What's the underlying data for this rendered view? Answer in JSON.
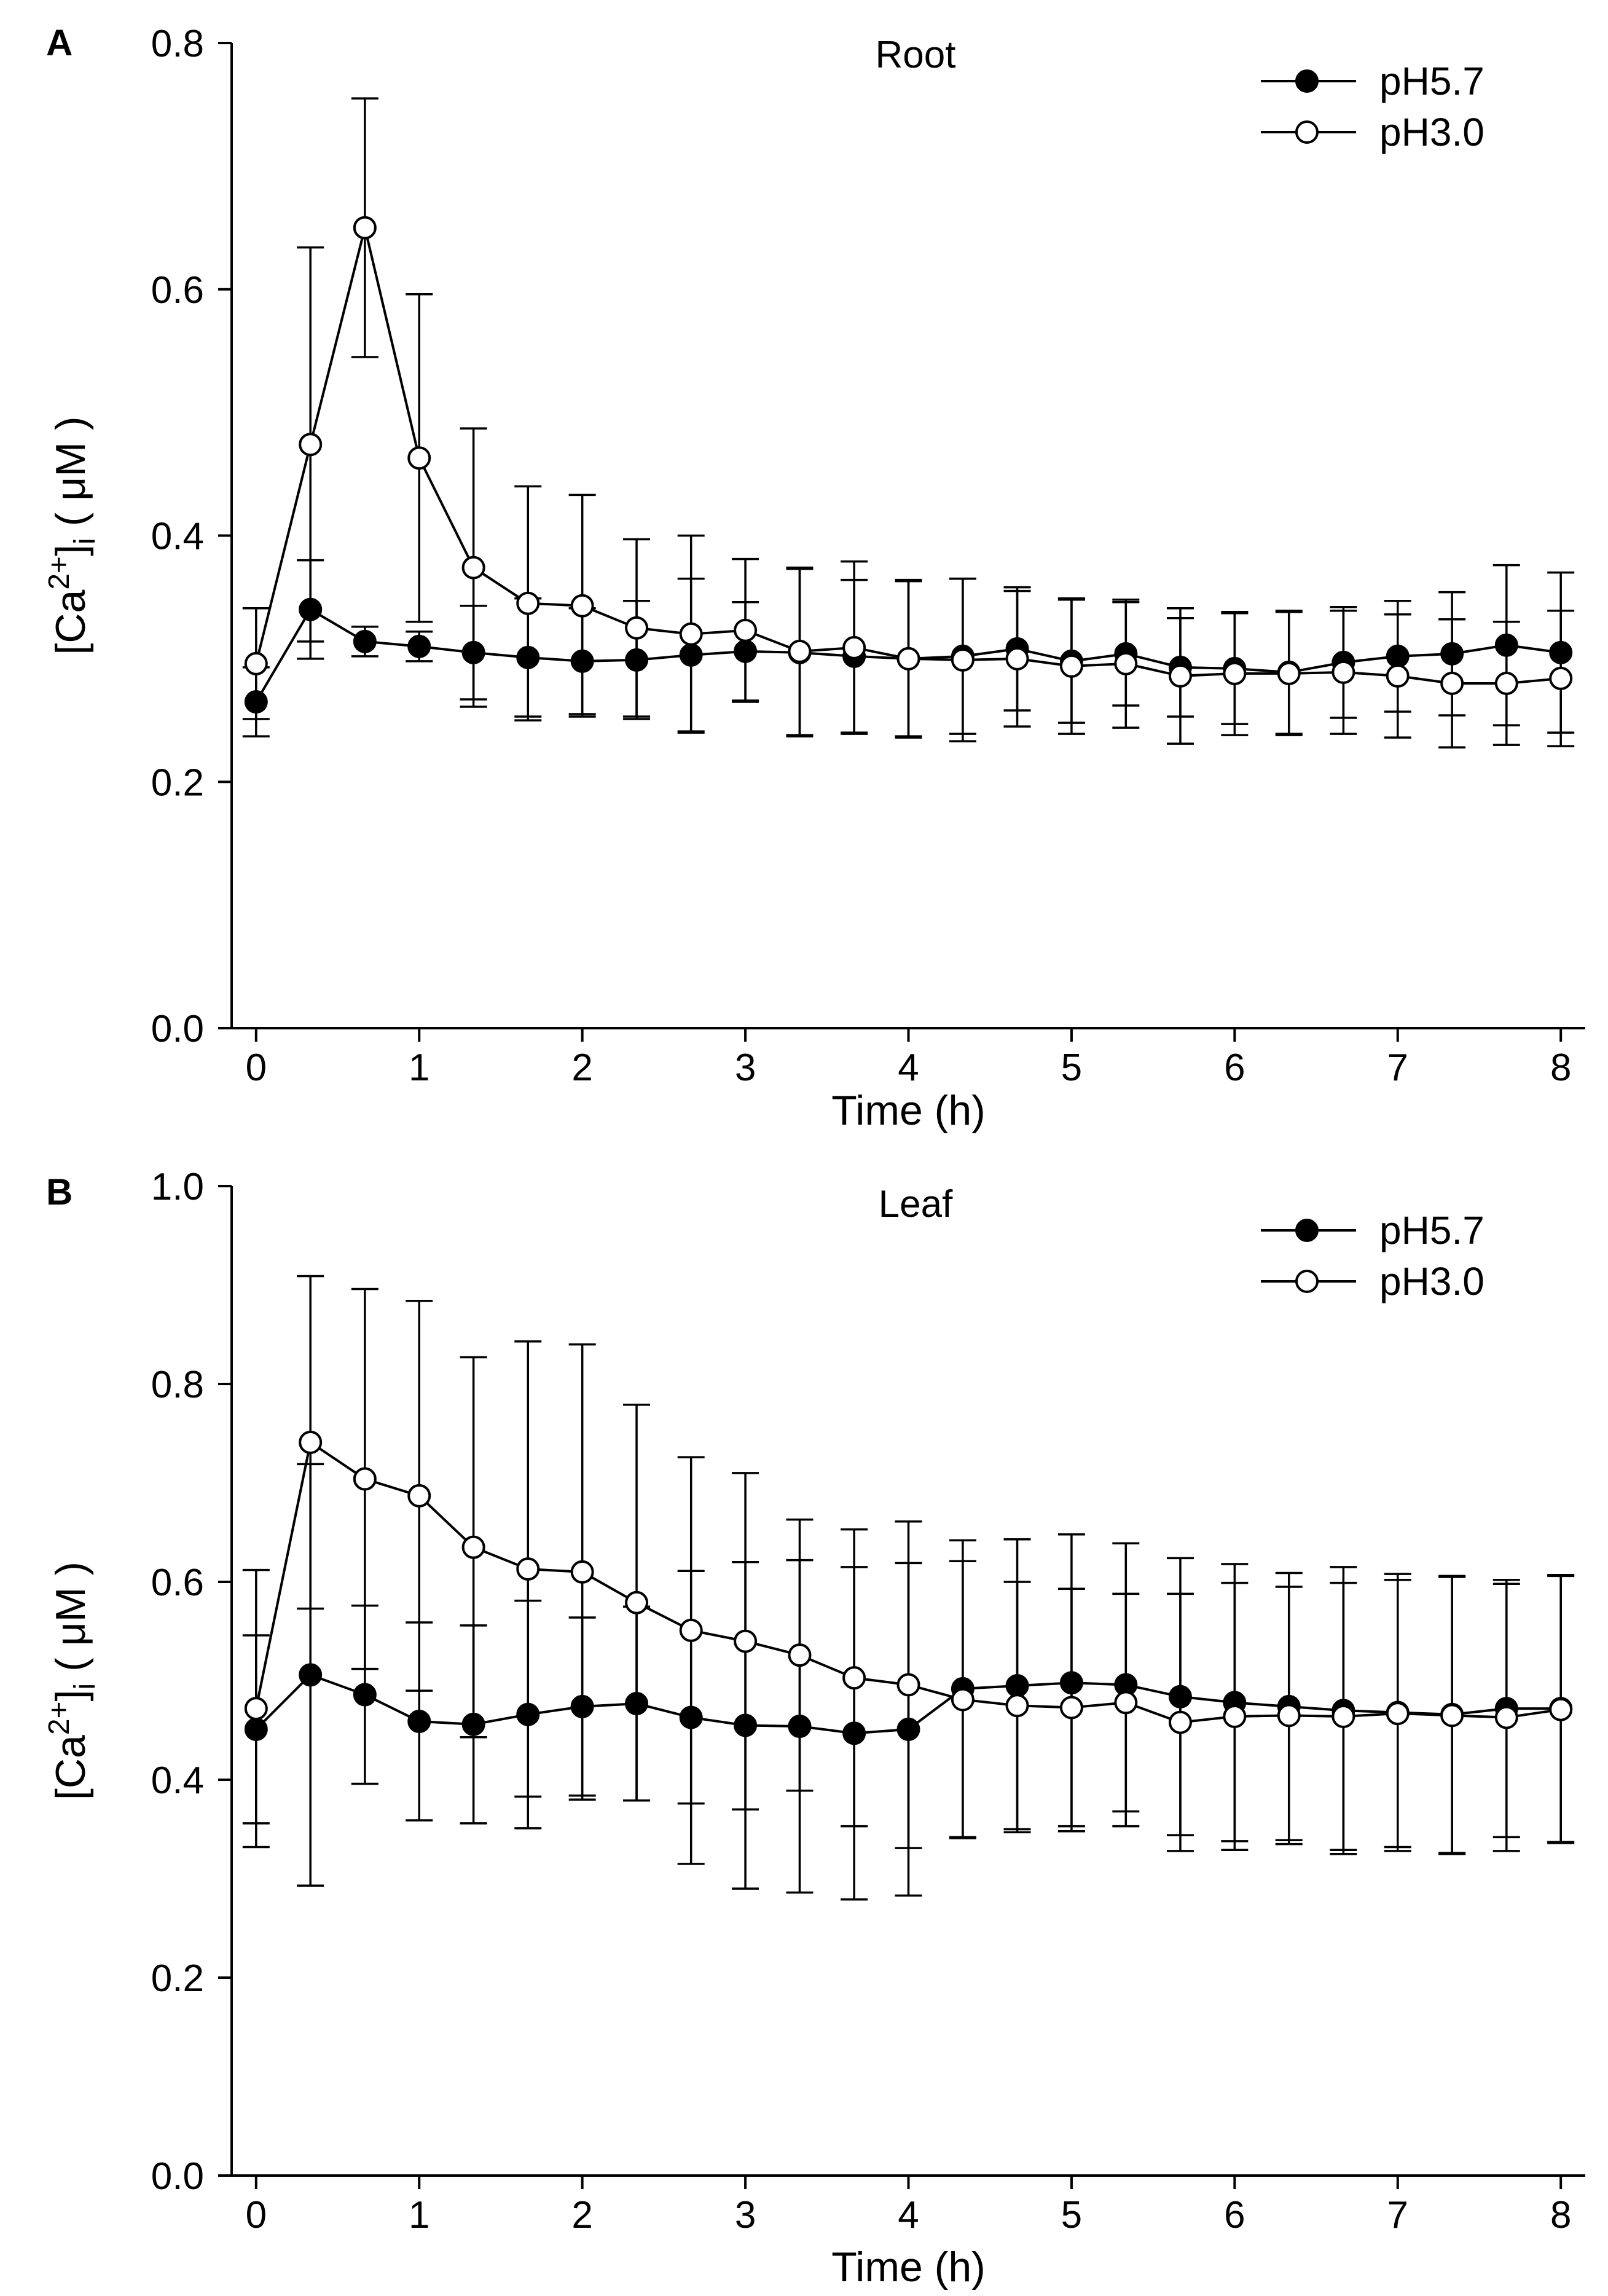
{
  "chart_data": [
    {
      "type": "line",
      "panel_label": "A",
      "title": "Root",
      "xlabel": "Time (h)",
      "ylabel": "[Ca2+]i ( μM )",
      "ylabel_parts": {
        "base": "[Ca",
        "sup": "2+",
        "mid": "]",
        "sub": "i",
        "tail": " ( μM )"
      },
      "xlim": [
        -0.15,
        8.15
      ],
      "ylim": [
        0,
        0.8
      ],
      "xticks": [
        0,
        1,
        2,
        3,
        4,
        5,
        6,
        7,
        8
      ],
      "yticks": [
        0.0,
        0.2,
        0.4,
        0.6,
        0.8
      ],
      "ytick_labels": [
        "0.0",
        "0.2",
        "0.4",
        "0.6",
        "0.8"
      ],
      "xtick_labels": [
        "0",
        "1",
        "2",
        "3",
        "4",
        "5",
        "6",
        "7",
        "8"
      ],
      "legend": [
        "pH5.7",
        "pH3.0"
      ],
      "legend_position": "top-right",
      "x": [
        0,
        0.333,
        0.667,
        1,
        1.333,
        1.667,
        2,
        2.333,
        2.667,
        3,
        3.333,
        3.667,
        4,
        4.333,
        4.667,
        5,
        5.333,
        5.667,
        6,
        6.333,
        6.667,
        7,
        7.333,
        7.667,
        8
      ],
      "series": [
        {
          "name": "pH5.7",
          "marker": "filled",
          "values": [
            0.265,
            0.34,
            0.314,
            0.31,
            0.305,
            0.301,
            0.298,
            0.299,
            0.303,
            0.306,
            0.305,
            0.302,
            0.3,
            0.302,
            0.308,
            0.298,
            0.304,
            0.293,
            0.292,
            0.289,
            0.297,
            0.302,
            0.304,
            0.311,
            0.305
          ],
          "errors": [
            0.028,
            0.04,
            0.012,
            0.012,
            0.038,
            0.048,
            0.043,
            0.048,
            0.062,
            0.04,
            0.068,
            0.062,
            0.064,
            0.063,
            0.05,
            0.05,
            0.042,
            0.04,
            0.045,
            0.05,
            0.045,
            0.045,
            0.05,
            0.065,
            0.065
          ]
        },
        {
          "name": "pH3.0",
          "marker": "open",
          "values": [
            0.296,
            0.474,
            0.65,
            0.463,
            0.374,
            0.345,
            0.343,
            0.325,
            0.32,
            0.323,
            0.306,
            0.309,
            0.3,
            0.299,
            0.3,
            0.294,
            0.296,
            0.286,
            0.288,
            0.288,
            0.289,
            0.286,
            0.28,
            0.28,
            0.284
          ],
          "errors": [
            0.045,
            0.16,
            0.105,
            0.133,
            0.113,
            0.095,
            0.09,
            0.072,
            0.08,
            0.058,
            0.068,
            0.07,
            0.063,
            0.066,
            0.055,
            0.055,
            0.052,
            0.055,
            0.05,
            0.05,
            0.05,
            0.05,
            0.052,
            0.05,
            0.055
          ]
        }
      ]
    },
    {
      "type": "line",
      "panel_label": "B",
      "title": "Leaf",
      "xlabel": "Time (h)",
      "ylabel": "[Ca2+]i ( μM )",
      "ylabel_parts": {
        "base": "[Ca",
        "sup": "2+",
        "mid": "]",
        "sub": "i",
        "tail": " ( μM )"
      },
      "xlim": [
        -0.15,
        8.15
      ],
      "ylim": [
        0,
        1.0
      ],
      "xticks": [
        0,
        1,
        2,
        3,
        4,
        5,
        6,
        7,
        8
      ],
      "yticks": [
        0.0,
        0.2,
        0.4,
        0.6,
        0.8,
        1.0
      ],
      "ytick_labels": [
        "0.0",
        "0.2",
        "0.4",
        "0.6",
        "0.8",
        "1.0"
      ],
      "xtick_labels": [
        "0",
        "1",
        "2",
        "3",
        "4",
        "5",
        "6",
        "7",
        "8"
      ],
      "legend": [
        "pH5.7",
        "pH3.0"
      ],
      "legend_position": "top-right",
      "x": [
        0,
        0.333,
        0.667,
        1,
        1.333,
        1.667,
        2,
        2.333,
        2.667,
        3,
        3.333,
        3.667,
        4,
        4.333,
        4.667,
        5,
        5.333,
        5.667,
        6,
        6.333,
        6.667,
        7,
        7.333,
        7.667,
        8
      ],
      "series": [
        {
          "name": "pH5.7",
          "marker": "filled",
          "values": [
            0.451,
            0.506,
            0.486,
            0.459,
            0.456,
            0.466,
            0.474,
            0.477,
            0.463,
            0.455,
            0.454,
            0.447,
            0.451,
            0.492,
            0.495,
            0.498,
            0.496,
            0.484,
            0.478,
            0.474,
            0.47,
            0.468,
            0.466,
            0.472,
            0.472
          ],
          "errors": [
            0.095,
            0.213,
            0.09,
            0.1,
            0.1,
            0.115,
            0.09,
            0.098,
            0.148,
            0.165,
            0.168,
            0.168,
            0.168,
            0.15,
            0.148,
            0.15,
            0.143,
            0.14,
            0.14,
            0.135,
            0.145,
            0.14,
            0.14,
            0.13,
            0.135
          ]
        },
        {
          "name": "pH3.0",
          "marker": "open",
          "values": [
            0.472,
            0.741,
            0.704,
            0.687,
            0.635,
            0.613,
            0.61,
            0.579,
            0.551,
            0.54,
            0.526,
            0.503,
            0.496,
            0.481,
            0.475,
            0.473,
            0.478,
            0.458,
            0.464,
            0.465,
            0.464,
            0.467,
            0.465,
            0.463,
            0.471
          ],
          "errors": [
            0.14,
            0.168,
            0.192,
            0.197,
            0.192,
            0.23,
            0.23,
            0.2,
            0.175,
            0.17,
            0.137,
            0.15,
            0.165,
            0.14,
            0.125,
            0.12,
            0.11,
            0.13,
            0.135,
            0.13,
            0.135,
            0.135,
            0.14,
            0.135,
            0.135
          ]
        }
      ]
    }
  ]
}
